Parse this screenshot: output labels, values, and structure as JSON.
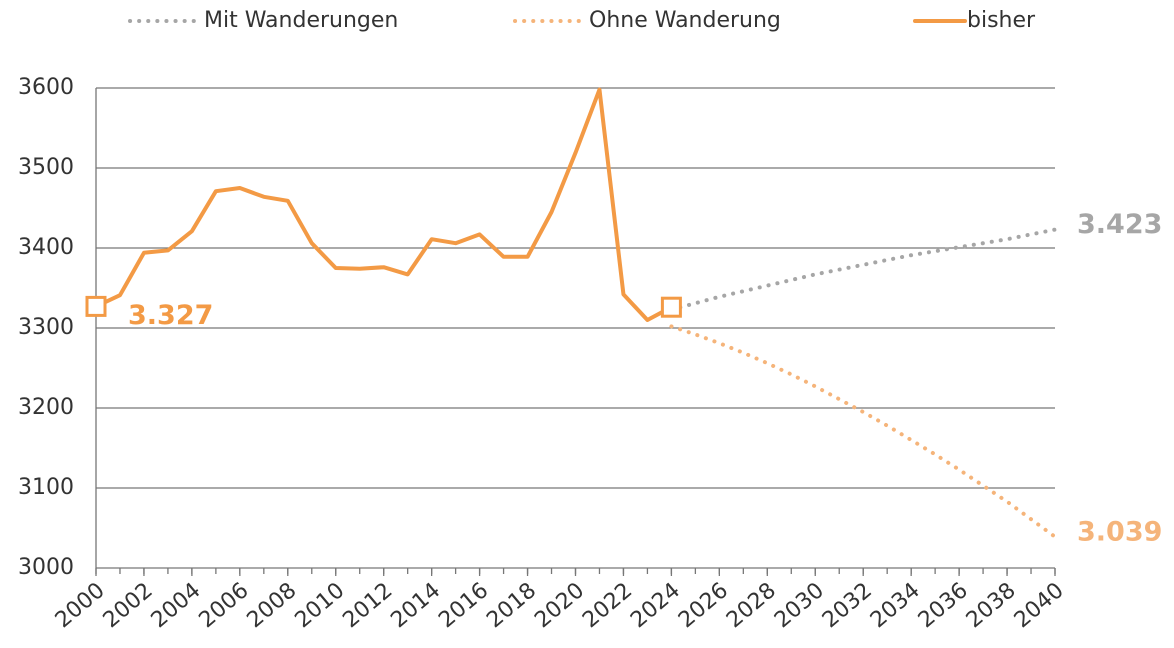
{
  "chart_data": {
    "type": "line",
    "x": [
      2000,
      2001,
      2002,
      2003,
      2004,
      2005,
      2006,
      2007,
      2008,
      2009,
      2010,
      2011,
      2012,
      2013,
      2014,
      2015,
      2016,
      2017,
      2018,
      2019,
      2020,
      2021,
      2022,
      2023,
      2024,
      2025,
      2026,
      2027,
      2028,
      2029,
      2030,
      2031,
      2032,
      2033,
      2034,
      2035,
      2036,
      2037,
      2038,
      2039,
      2040
    ],
    "series": [
      {
        "name": "Mit Wanderungen",
        "color": "#a6a6a6",
        "style": "dotted",
        "values": [
          null,
          null,
          null,
          null,
          null,
          null,
          null,
          null,
          null,
          null,
          null,
          null,
          null,
          null,
          null,
          null,
          null,
          null,
          null,
          null,
          null,
          null,
          null,
          null,
          3323,
          3331,
          3339,
          3346,
          3353,
          3360,
          3367,
          3373,
          3379,
          3385,
          3391,
          3396,
          3401,
          3406,
          3411,
          3417,
          3423
        ],
        "value_labels": [
          null,
          null,
          null,
          null,
          null,
          null,
          null,
          null,
          null,
          null,
          null,
          null,
          null,
          null,
          null,
          null,
          null,
          null,
          null,
          null,
          null,
          null,
          null,
          null,
          null,
          null,
          null,
          null,
          null,
          null,
          null,
          null,
          null,
          null,
          null,
          null,
          null,
          null,
          null,
          null,
          "3.423"
        ]
      },
      {
        "name": "Ohne Wanderung",
        "color": "#f5b47a",
        "style": "dotted",
        "values": [
          null,
          null,
          null,
          null,
          null,
          null,
          null,
          null,
          null,
          null,
          null,
          null,
          null,
          null,
          null,
          null,
          null,
          null,
          null,
          null,
          null,
          null,
          null,
          null,
          3302,
          3292,
          3281,
          3269,
          3256,
          3242,
          3227,
          3211,
          3195,
          3178,
          3160,
          3142,
          3123,
          3103,
          3083,
          3061,
          3039
        ],
        "value_labels": [
          null,
          null,
          null,
          null,
          null,
          null,
          null,
          null,
          null,
          null,
          null,
          null,
          null,
          null,
          null,
          null,
          null,
          null,
          null,
          null,
          null,
          null,
          null,
          null,
          null,
          null,
          null,
          null,
          null,
          null,
          null,
          null,
          null,
          null,
          null,
          null,
          null,
          null,
          null,
          null,
          "3.039"
        ]
      },
      {
        "name": "bisher",
        "color": "#f39a45",
        "style": "solid",
        "values": [
          3327,
          3341,
          3394,
          3397,
          3421,
          3471,
          3475,
          3464,
          3459,
          3406,
          3375,
          3374,
          3376,
          3367,
          3411,
          3406,
          3417,
          3389,
          3389,
          3445,
          3519,
          3598,
          3342,
          3310,
          3326,
          null,
          null,
          null,
          null,
          null,
          null,
          null,
          null,
          null,
          null,
          null,
          null,
          null,
          null,
          null,
          null
        ],
        "value_labels": [
          "3.327",
          null,
          null,
          null,
          null,
          null,
          null,
          null,
          null,
          null,
          null,
          null,
          null,
          null,
          null,
          null,
          null,
          null,
          null,
          null,
          null,
          null,
          null,
          null,
          null,
          null,
          null,
          null,
          null,
          null,
          null,
          null,
          null,
          null,
          null,
          null,
          null,
          null,
          null,
          null,
          null
        ]
      }
    ],
    "xlim": [
      2000,
      2040
    ],
    "xticks": [
      2000,
      2002,
      2004,
      2006,
      2008,
      2010,
      2012,
      2014,
      2016,
      2018,
      2020,
      2022,
      2024,
      2026,
      2028,
      2030,
      2032,
      2034,
      2036,
      2038,
      2040
    ],
    "ylim": [
      3000,
      3600
    ],
    "yticks": [
      3000,
      3100,
      3200,
      3300,
      3400,
      3500,
      3600
    ],
    "grid": true,
    "legend": "top"
  }
}
